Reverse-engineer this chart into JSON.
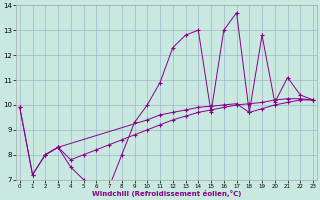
{
  "xlabel": "Windchill (Refroidissement éolien,°C)",
  "line_color": "#880088",
  "bg_color": "#c8e8e0",
  "grid_color": "#a0b8c8",
  "line1_x": [
    0,
    1,
    2,
    3,
    4,
    5,
    6,
    7,
    8,
    9,
    10,
    11,
    12,
    13,
    14,
    15,
    16,
    17,
    18,
    19,
    20,
    21,
    22,
    23
  ],
  "line1_y": [
    9.9,
    7.2,
    8.0,
    8.3,
    7.5,
    7.0,
    6.8,
    6.7,
    8.0,
    9.3,
    10.0,
    10.9,
    12.3,
    12.8,
    13.0,
    9.7,
    13.0,
    13.7,
    9.7,
    12.8,
    10.1,
    11.1,
    10.4,
    10.2
  ],
  "line2_x": [
    0,
    1,
    2,
    3,
    10,
    11,
    12,
    13,
    14,
    15,
    16,
    17,
    18,
    19,
    20,
    21,
    22,
    23
  ],
  "line2_y": [
    9.9,
    7.2,
    8.0,
    8.3,
    9.4,
    9.6,
    9.7,
    9.8,
    9.9,
    9.95,
    10.0,
    10.05,
    9.7,
    9.85,
    10.0,
    10.1,
    10.2,
    10.2
  ],
  "line3_x": [
    2,
    3,
    4,
    5,
    6,
    7,
    8,
    9,
    10,
    11,
    12,
    13,
    14,
    15,
    16,
    17,
    18,
    19,
    20,
    21,
    22,
    23
  ],
  "line3_y": [
    8.0,
    8.3,
    7.8,
    8.0,
    8.2,
    8.4,
    8.6,
    8.8,
    9.0,
    9.2,
    9.4,
    9.55,
    9.7,
    9.8,
    9.9,
    10.0,
    10.05,
    10.1,
    10.2,
    10.25,
    10.25,
    10.2
  ],
  "xlim": [
    -0.3,
    23.3
  ],
  "ylim": [
    7,
    14
  ],
  "yticks": [
    7,
    8,
    9,
    10,
    11,
    12,
    13,
    14
  ],
  "xticks": [
    0,
    1,
    2,
    3,
    4,
    5,
    6,
    7,
    8,
    9,
    10,
    11,
    12,
    13,
    14,
    15,
    16,
    17,
    18,
    19,
    20,
    21,
    22,
    23
  ]
}
